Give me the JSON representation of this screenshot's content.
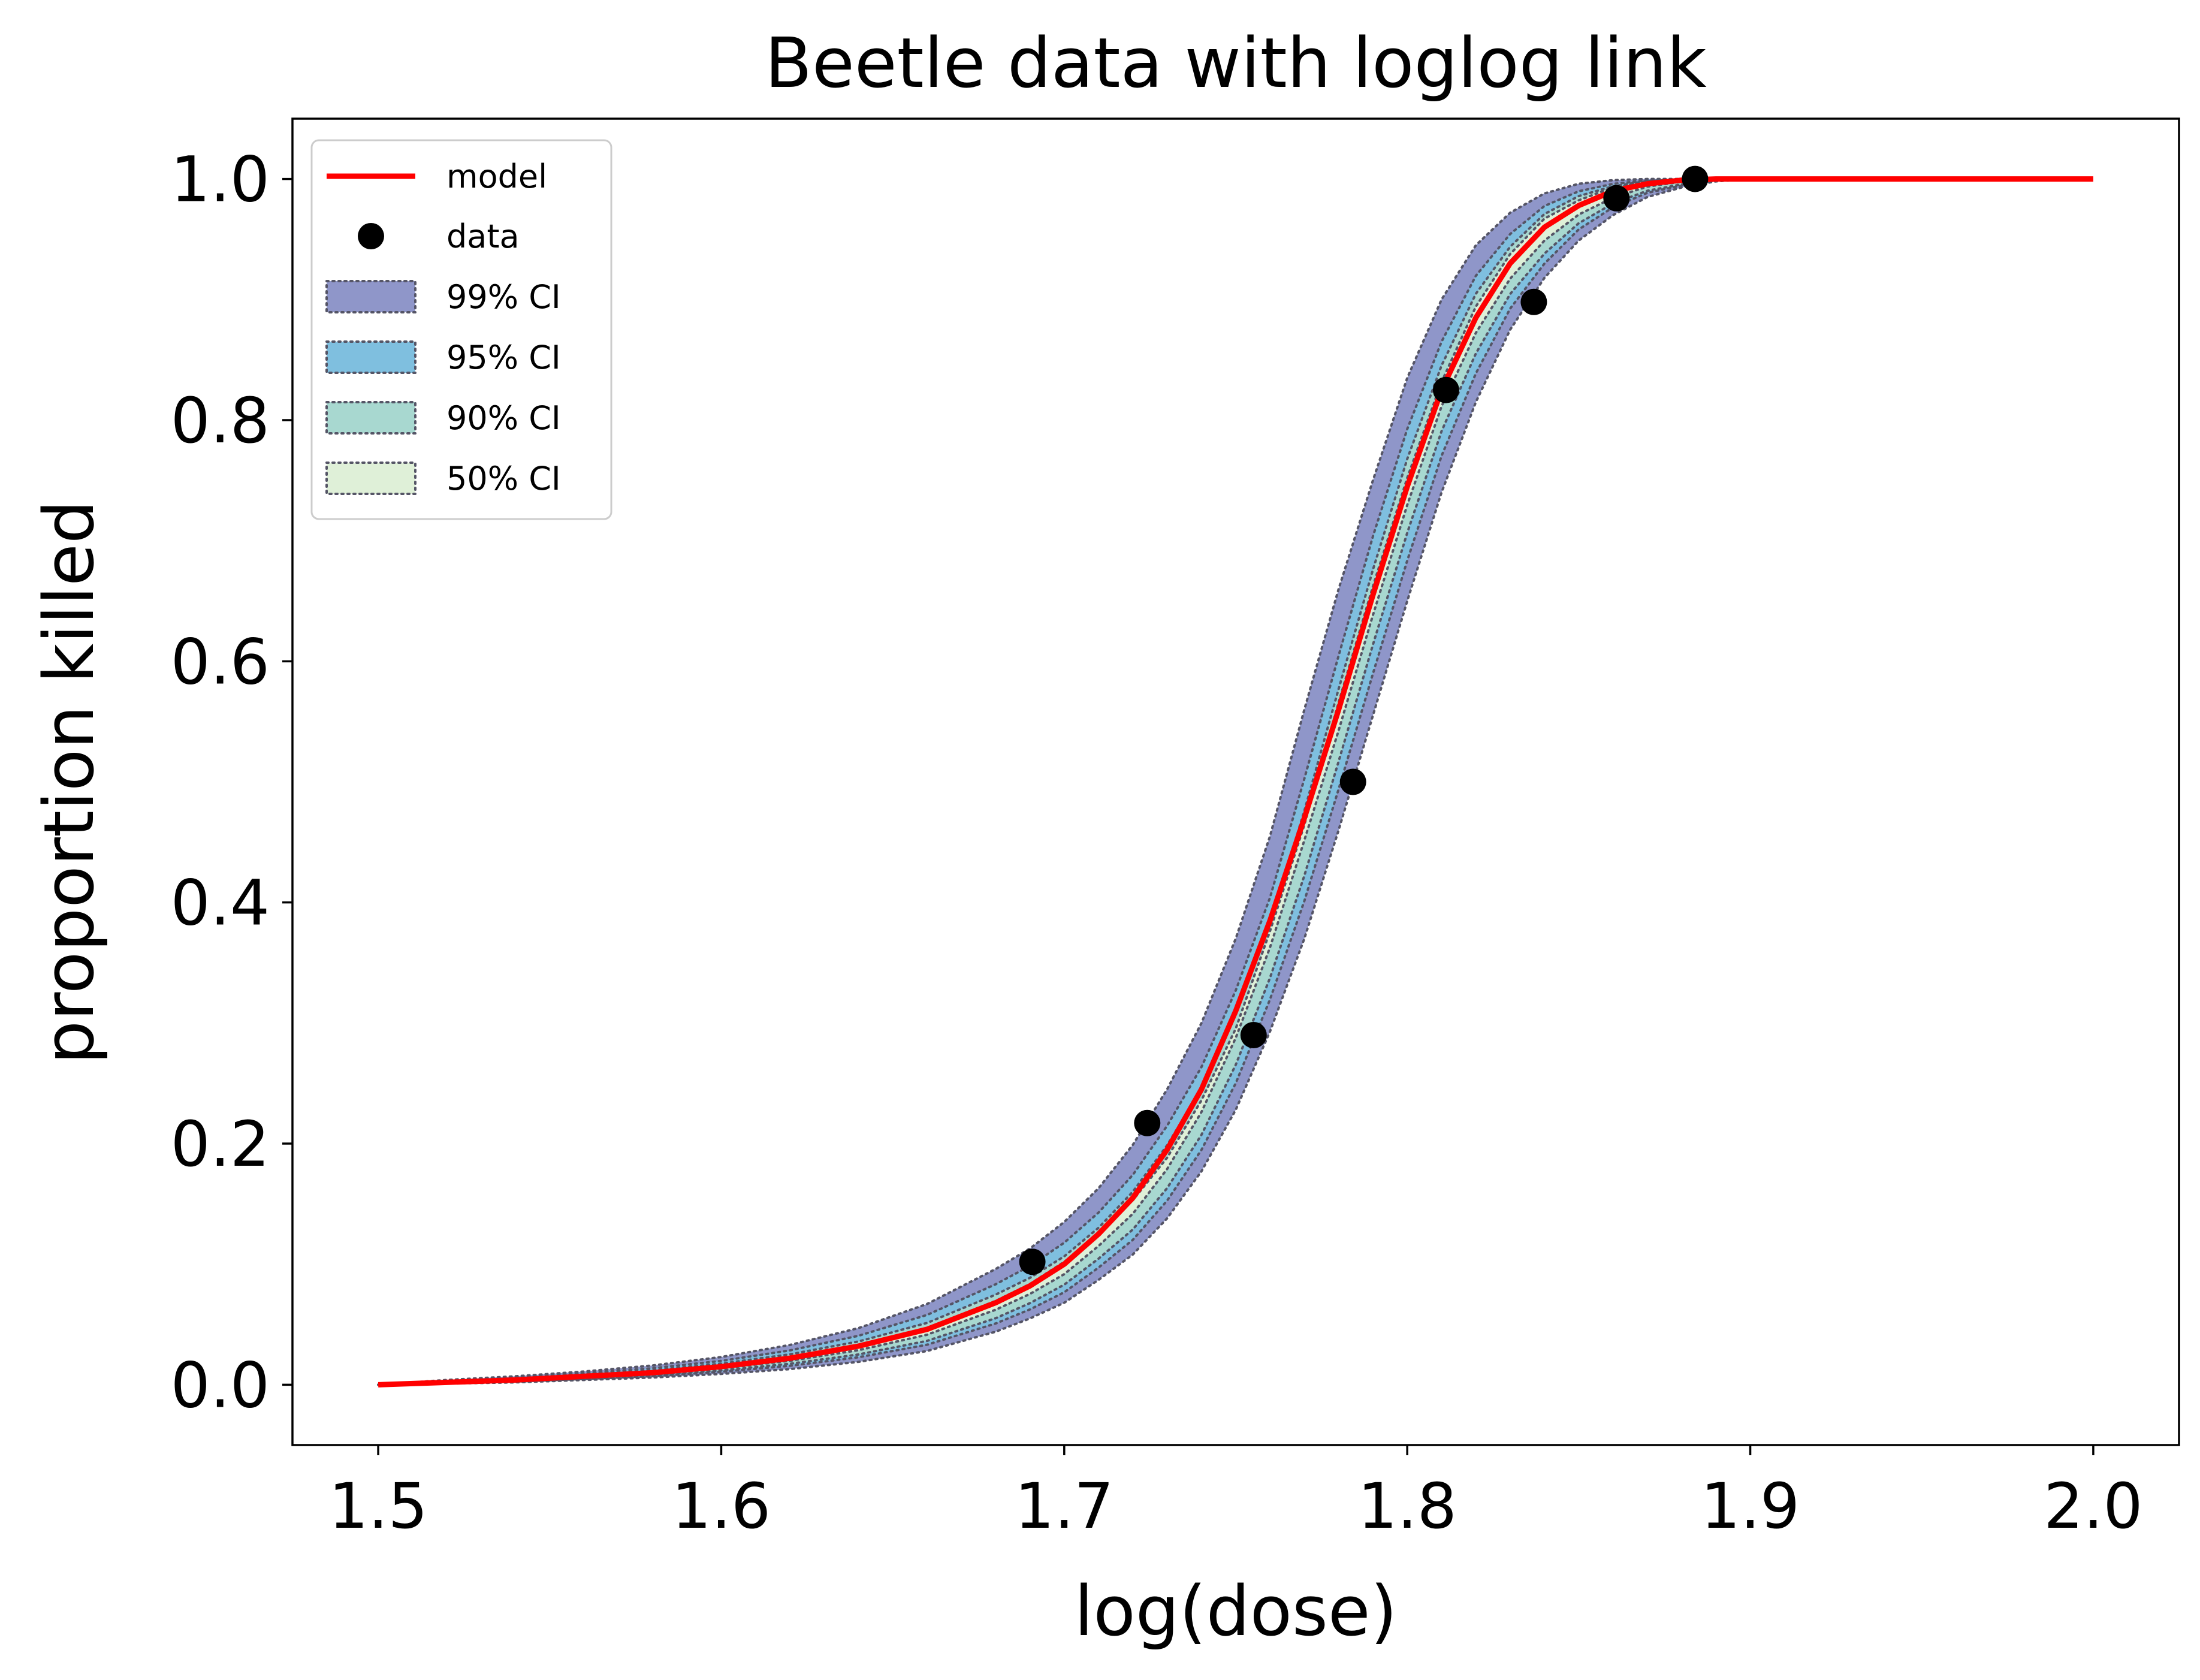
{
  "chart_data": {
    "type": "line",
    "title": "Beetle data with loglog link",
    "xlabel": "log(dose)",
    "ylabel": "proportion killed",
    "xlim": [
      1.475,
      2.025
    ],
    "ylim": [
      -0.05,
      1.05
    ],
    "xticks": [
      1.5,
      1.6,
      1.7,
      1.8,
      1.9,
      2.0
    ],
    "xtick_labels": [
      "1.5",
      "1.6",
      "1.7",
      "1.8",
      "1.9",
      "2.0"
    ],
    "yticks": [
      0.0,
      0.2,
      0.4,
      0.6,
      0.8,
      1.0
    ],
    "ytick_labels": [
      "0.0",
      "0.2",
      "0.4",
      "0.6",
      "0.8",
      "1.0"
    ],
    "grid": false,
    "legend_position": "top-left",
    "model": {
      "name": "model",
      "color": "#ff0000",
      "x": [
        1.5,
        1.52,
        1.54,
        1.56,
        1.58,
        1.6,
        1.62,
        1.64,
        1.66,
        1.68,
        1.69,
        1.7,
        1.71,
        1.72,
        1.73,
        1.74,
        1.75,
        1.76,
        1.77,
        1.78,
        1.79,
        1.8,
        1.81,
        1.82,
        1.83,
        1.84,
        1.85,
        1.86,
        1.87,
        1.88,
        1.89,
        1.9,
        1.92,
        1.95,
        2.0
      ],
      "y": [
        0.0,
        0.002,
        0.004,
        0.007,
        0.01,
        0.015,
        0.022,
        0.032,
        0.046,
        0.068,
        0.082,
        0.1,
        0.125,
        0.155,
        0.195,
        0.245,
        0.31,
        0.385,
        0.47,
        0.56,
        0.655,
        0.745,
        0.825,
        0.885,
        0.93,
        0.96,
        0.978,
        0.99,
        0.996,
        0.999,
        1.0,
        1.0,
        1.0,
        1.0,
        1.0
      ]
    },
    "data": {
      "name": "data",
      "color": "#000000",
      "x": [
        1.6907,
        1.7242,
        1.7552,
        1.7842,
        1.8113,
        1.8369,
        1.861,
        1.8839
      ],
      "y": [
        0.102,
        0.217,
        0.29,
        0.5,
        0.825,
        0.898,
        0.984,
        1.0
      ]
    },
    "bands": [
      {
        "name": "99% CI",
        "color": "#8f96c9",
        "x": [
          1.5,
          1.52,
          1.54,
          1.56,
          1.58,
          1.6,
          1.62,
          1.64,
          1.66,
          1.68,
          1.69,
          1.7,
          1.71,
          1.72,
          1.73,
          1.74,
          1.75,
          1.76,
          1.77,
          1.78,
          1.79,
          1.8,
          1.81,
          1.82,
          1.83,
          1.84,
          1.85,
          1.86,
          1.87,
          1.88,
          1.89,
          1.9
        ],
        "lower": [
          0.0,
          0.001,
          0.002,
          0.004,
          0.006,
          0.009,
          0.013,
          0.019,
          0.028,
          0.044,
          0.055,
          0.068,
          0.087,
          0.108,
          0.138,
          0.177,
          0.228,
          0.293,
          0.37,
          0.46,
          0.555,
          0.65,
          0.74,
          0.815,
          0.875,
          0.918,
          0.949,
          0.97,
          0.985,
          0.993,
          0.998,
          1.0
        ],
        "upper": [
          0.0,
          0.004,
          0.007,
          0.011,
          0.016,
          0.023,
          0.033,
          0.047,
          0.067,
          0.096,
          0.113,
          0.135,
          0.163,
          0.199,
          0.245,
          0.3,
          0.37,
          0.455,
          0.56,
          0.66,
          0.75,
          0.835,
          0.9,
          0.945,
          0.972,
          0.988,
          0.996,
          0.999,
          1.0,
          1.0,
          1.0,
          1.0
        ]
      },
      {
        "name": "95% CI",
        "color": "#7fbfdf",
        "x": [
          1.5,
          1.52,
          1.54,
          1.56,
          1.58,
          1.6,
          1.62,
          1.64,
          1.66,
          1.68,
          1.69,
          1.7,
          1.71,
          1.72,
          1.73,
          1.74,
          1.75,
          1.76,
          1.77,
          1.78,
          1.79,
          1.8,
          1.81,
          1.82,
          1.83,
          1.84,
          1.85,
          1.86,
          1.87,
          1.88,
          1.89,
          1.9
        ],
        "lower": [
          0.0,
          0.0013,
          0.0026,
          0.0048,
          0.0072,
          0.0108,
          0.0157,
          0.0228,
          0.0332,
          0.0508,
          0.0625,
          0.0767,
          0.0972,
          0.1202,
          0.1527,
          0.1948,
          0.2501,
          0.3196,
          0.4013,
          0.494,
          0.5897,
          0.6835,
          0.7703,
          0.8388,
          0.8925,
          0.9298,
          0.9582,
          0.9765,
          0.9885,
          0.9946,
          0.9985,
          1.0
        ],
        "upper": [
          0.0,
          0.0033,
          0.0059,
          0.0094,
          0.0137,
          0.0198,
          0.0285,
          0.0406,
          0.0579,
          0.0833,
          0.0985,
          0.1178,
          0.1428,
          0.1741,
          0.2148,
          0.2635,
          0.327,
          0.404,
          0.5027,
          0.6047,
          0.7036,
          0.7926,
          0.865,
          0.9197,
          0.9543,
          0.9776,
          0.9898,
          0.9959,
          0.9988,
          0.9997,
          1.0,
          1.0
        ]
      },
      {
        "name": "90% CI",
        "color": "#a8d8d0",
        "x": [
          1.5,
          1.52,
          1.54,
          1.56,
          1.58,
          1.6,
          1.62,
          1.64,
          1.66,
          1.68,
          1.69,
          1.7,
          1.71,
          1.72,
          1.73,
          1.74,
          1.75,
          1.76,
          1.77,
          1.78,
          1.79,
          1.8,
          1.81,
          1.82,
          1.83,
          1.84,
          1.85,
          1.86,
          1.87,
          1.88,
          1.89,
          1.9
        ],
        "lower": [
          0.0,
          0.0015,
          0.003,
          0.0054,
          0.008,
          0.0119,
          0.0174,
          0.0251,
          0.0364,
          0.0552,
          0.0677,
          0.083,
          0.1046,
          0.1288,
          0.1631,
          0.2073,
          0.2654,
          0.3375,
          0.4222,
          0.517,
          0.6138,
          0.7066,
          0.7908,
          0.8553,
          0.9046,
          0.9381,
          0.9633,
          0.9797,
          0.9902,
          0.9955,
          0.9988,
          1.0
        ],
        "upper": [
          0.0,
          0.0028,
          0.0052,
          0.0083,
          0.0121,
          0.0175,
          0.0252,
          0.0359,
          0.0513,
          0.0747,
          0.0887,
          0.1065,
          0.1302,
          0.1601,
          0.1986,
          0.2455,
          0.3068,
          0.382,
          0.476,
          0.5771,
          0.6759,
          0.7678,
          0.8452,
          0.9048,
          0.9438,
          0.9709,
          0.9858,
          0.994,
          0.9982,
          0.9996,
          1.0,
          1.0
        ]
      },
      {
        "name": "50% CI",
        "color": "#dff0d8",
        "x": [
          1.5,
          1.52,
          1.54,
          1.56,
          1.58,
          1.6,
          1.62,
          1.64,
          1.66,
          1.68,
          1.69,
          1.7,
          1.71,
          1.72,
          1.73,
          1.74,
          1.75,
          1.76,
          1.77,
          1.78,
          1.79,
          1.8,
          1.81,
          1.82,
          1.83,
          1.84,
          1.85,
          1.86,
          1.87,
          1.88,
          1.89,
          1.9
        ],
        "lower": [
          0.0,
          0.0018,
          0.0035,
          0.0063,
          0.0091,
          0.0136,
          0.0199,
          0.0287,
          0.0415,
          0.0622,
          0.0753,
          0.0917,
          0.1151,
          0.1418,
          0.1789,
          0.2262,
          0.2877,
          0.3627,
          0.4516,
          0.5427,
          0.6383,
          0.7297,
          0.8114,
          0.8724,
          0.9173,
          0.9489,
          0.9705,
          0.9845,
          0.9937,
          0.9977,
          0.9994,
          1.0
        ],
        "upper": [
          0.0,
          0.0023,
          0.0045,
          0.0075,
          0.011,
          0.0161,
          0.0232,
          0.0332,
          0.0471,
          0.0695,
          0.0835,
          0.1019,
          0.1242,
          0.1531,
          0.1883,
          0.2359,
          0.2953,
          0.3763,
          0.4644,
          0.5658,
          0.6621,
          0.7521,
          0.8316,
          0.8942,
          0.9377,
          0.9671,
          0.9823,
          0.9931,
          0.9974,
          0.9993,
          1.0,
          1.0
        ]
      }
    ]
  }
}
